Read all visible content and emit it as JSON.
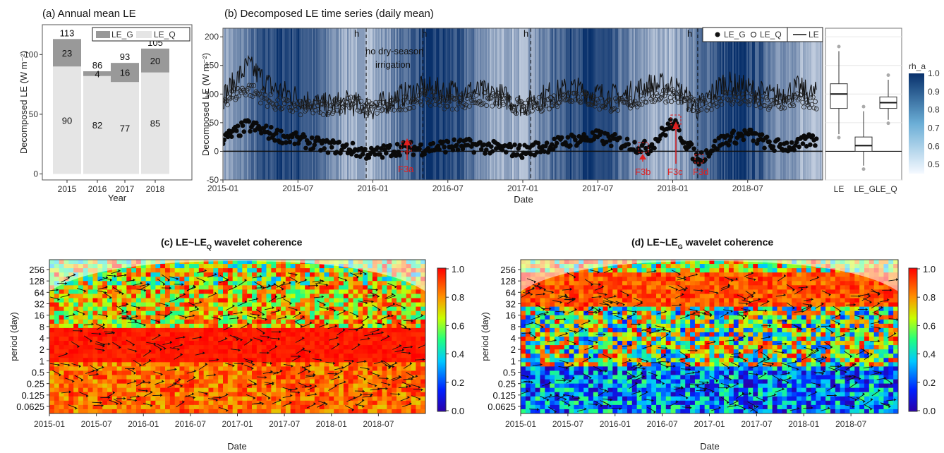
{
  "colors": {
    "lg_dark": "#999999",
    "lq_light": "#e5e5e5",
    "blue_lo": "#f5f9ff",
    "blue_hi": "#08306b",
    "marker_red": "#e02020"
  },
  "panels": {
    "a_title": "(a) Annual mean LE",
    "b_title": "(b) Decomposed LE time series (daily mean)",
    "c_title": "(c) LE~LE",
    "c_sub": "Q",
    "c_title_end": " wavelet coherence",
    "d_title": "(d) LE~LE",
    "d_sub": "G",
    "d_title_end": " wavelet coherence"
  },
  "annotations": {
    "no_dry_1": "no dry-season",
    "no_dry_2": "irrigation",
    "h": "h",
    "f3a": "F3a",
    "f3b": "F3b",
    "f3c": "F3c",
    "f3d": "F3d"
  },
  "chart_data": [
    {
      "id": "a",
      "type": "bar",
      "title": "(a) Annual mean LE",
      "xlabel": "Year",
      "ylabel": "Decomposed LE (W m⁻²)",
      "categories": [
        "2015",
        "2016",
        "2017",
        "2018"
      ],
      "series": [
        {
          "name": "LE_Q",
          "values": [
            90,
            82,
            77,
            85
          ]
        },
        {
          "name": "LE_G",
          "values": [
            23,
            4,
            16,
            20
          ]
        }
      ],
      "totals": [
        113,
        86,
        93,
        105
      ],
      "yticks": [
        "0",
        "50",
        "100"
      ],
      "ylim": [
        -5,
        125
      ],
      "legend": "top-right"
    },
    {
      "id": "b",
      "type": "scatter",
      "title": "(b) Decomposed LE time series (daily mean)",
      "xlabel": "Date",
      "ylabel": "Decomposed LE (W m⁻²)",
      "xticks": [
        "2015-01",
        "2015-07",
        "2016-01",
        "2016-07",
        "2017-01",
        "2017-07",
        "2018-01",
        "2018-07"
      ],
      "yticks": [
        "-50",
        "0",
        "50",
        "100",
        "150",
        "200"
      ],
      "ylim": [
        -50,
        215
      ],
      "legend": [
        "LE_G",
        "LE_Q",
        "LE"
      ],
      "colorbar": {
        "title": "rh_a",
        "ticks": [
          "1.0",
          "0.9",
          "0.8",
          "0.7",
          "0.6",
          "0.5"
        ]
      },
      "series": [
        {
          "name": "LE",
          "x": [
            "2015-01",
            "2015-03",
            "2015-05",
            "2015-07",
            "2015-09",
            "2015-11",
            "2016-01",
            "2016-03",
            "2016-05",
            "2016-07",
            "2016-09",
            "2016-11",
            "2017-01",
            "2017-03",
            "2017-05",
            "2017-07",
            "2017-09",
            "2017-11",
            "2018-01",
            "2018-03",
            "2018-05",
            "2018-07",
            "2018-09",
            "2018-11",
            "2018-12"
          ],
          "y": [
            95,
            150,
            110,
            95,
            80,
            85,
            75,
            95,
            110,
            105,
            105,
            100,
            80,
            100,
            110,
            100,
            95,
            115,
            115,
            75,
            120,
            110,
            95,
            110,
            100
          ]
        },
        {
          "name": "LE_Q",
          "x": [
            "2015-01",
            "2015-03",
            "2015-05",
            "2015-07",
            "2015-09",
            "2015-11",
            "2016-01",
            "2016-03",
            "2016-05",
            "2016-07",
            "2016-09",
            "2016-11",
            "2017-01",
            "2017-03",
            "2017-05",
            "2017-07",
            "2017-09",
            "2017-11",
            "2018-01",
            "2018-03",
            "2018-05",
            "2018-07",
            "2018-09",
            "2018-11",
            "2018-12"
          ],
          "y": [
            90,
            110,
            85,
            75,
            75,
            85,
            75,
            80,
            95,
            85,
            90,
            90,
            75,
            85,
            100,
            85,
            80,
            95,
            100,
            75,
            95,
            90,
            80,
            90,
            85
          ]
        },
        {
          "name": "LE_G",
          "x": [
            "2015-01",
            "2015-03",
            "2015-05",
            "2015-07",
            "2015-09",
            "2015-11",
            "2016-01",
            "2016-03",
            "2016-05",
            "2016-07",
            "2016-09",
            "2016-11",
            "2017-01",
            "2017-03",
            "2017-05",
            "2017-07",
            "2017-09",
            "2017-11",
            "2018-01",
            "2018-03",
            "2018-05",
            "2018-07",
            "2018-09",
            "2018-11",
            "2018-12"
          ],
          "y": [
            20,
            45,
            30,
            20,
            10,
            5,
            -5,
            5,
            5,
            10,
            10,
            5,
            0,
            10,
            20,
            25,
            15,
            5,
            50,
            -15,
            20,
            30,
            10,
            10,
            20
          ]
        }
      ],
      "dashed_lines_at": [
        "2015-12-15",
        "2016-05-01",
        "2017-01-20",
        "2018-03-01"
      ]
    },
    {
      "id": "b_box",
      "type": "box",
      "categories": [
        "LE",
        "LE_GLE_Q"
      ],
      "box_categories": [
        "LE",
        "LE_G",
        "LE_Q"
      ],
      "series": [
        {
          "name": "LE",
          "min": 30,
          "q1": 75,
          "median": 100,
          "q3": 118,
          "max": 175
        },
        {
          "name": "LE_G",
          "min": -25,
          "q1": 0,
          "median": 10,
          "q3": 25,
          "max": 70
        },
        {
          "name": "LE_Q",
          "min": 55,
          "q1": 75,
          "median": 85,
          "q3": 95,
          "max": 125
        }
      ]
    },
    {
      "id": "c",
      "type": "heatmap",
      "title": "(c) LE~LE_Q wavelet coherence",
      "xlabel": "Date",
      "ylabel": "period (day)",
      "xticks": [
        "2015-01",
        "2015-07",
        "2016-01",
        "2016-07",
        "2017-01",
        "2017-07",
        "2018-01",
        "2018-07"
      ],
      "yticks": [
        "256",
        "128",
        "64",
        "32",
        "16",
        "8",
        "4",
        "2",
        "1",
        "0.5",
        "0.25",
        "0.125",
        "0.0625"
      ],
      "colorbar": {
        "ticks": [
          "1.0",
          "0.8",
          "0.6",
          "0.4",
          "0.2",
          "0.0"
        ]
      }
    },
    {
      "id": "d",
      "type": "heatmap",
      "title": "(d) LE~LE_G wavelet coherence",
      "xlabel": "Date",
      "ylabel": "period (day)",
      "xticks": [
        "2015-01",
        "2015-07",
        "2016-01",
        "2016-07",
        "2017-01",
        "2017-07",
        "2018-01",
        "2018-07"
      ],
      "yticks": [
        "256",
        "128",
        "64",
        "32",
        "16",
        "8",
        "4",
        "2",
        "1",
        "0.5",
        "0.25",
        "0.125",
        "0.0625"
      ],
      "colorbar": {
        "ticks": [
          "1.0",
          "0.8",
          "0.6",
          "0.4",
          "0.2",
          "0.0"
        ]
      }
    }
  ]
}
